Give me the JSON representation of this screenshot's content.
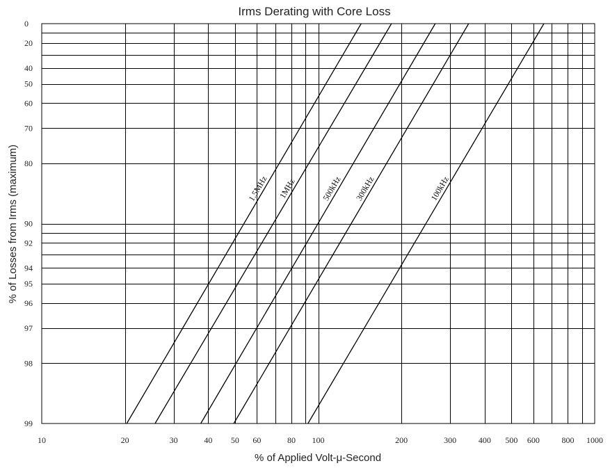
{
  "chart_data": {
    "type": "line",
    "title": "Irms Derating with Core Loss",
    "xlabel": "% of Applied Volt-μ-Second",
    "ylabel": "% of Losses from Irms (maximum)",
    "x_scale": "log",
    "xlim": [
      10,
      1000
    ],
    "x_ticks": [
      10,
      20,
      30,
      40,
      50,
      60,
      80,
      100,
      200,
      300,
      400,
      500,
      600,
      800,
      1000
    ],
    "x_tick_labels": [
      "10",
      "20",
      "30",
      "40",
      "50",
      "60",
      "80",
      "100",
      "200",
      "300",
      "400",
      "500",
      "600",
      "800",
      "1000"
    ],
    "x_minor_grid": [
      70,
      90,
      700,
      900
    ],
    "y_scale": "nonlinear (log of 100 - y)",
    "ylim": [
      0,
      99
    ],
    "y_ticks": [
      0,
      20,
      40,
      50,
      60,
      70,
      80,
      90,
      92,
      94,
      95,
      96,
      97,
      98,
      99
    ],
    "y_tick_labels": [
      "0",
      "20",
      "40",
      "50",
      "60",
      "70",
      "80",
      "90",
      "92",
      "94",
      "95",
      "96",
      "97",
      "98",
      "99"
    ],
    "y_minor_grid": [
      10,
      30,
      91,
      93
    ],
    "grid": true,
    "series": [
      {
        "name": "1.5MHz",
        "points": [
          [
            20.3,
            99
          ],
          [
            143,
            0
          ]
        ]
      },
      {
        "name": "1MHz",
        "points": [
          [
            25.7,
            99
          ],
          [
            184,
            0
          ]
        ]
      },
      {
        "name": "500kHz",
        "points": [
          [
            37.6,
            99
          ],
          [
            265,
            0
          ]
        ]
      },
      {
        "name": "300kHz",
        "points": [
          [
            49.5,
            99
          ],
          [
            350,
            0
          ]
        ]
      },
      {
        "name": "100kHz",
        "points": [
          [
            91.8,
            99
          ],
          [
            655,
            0
          ]
        ]
      }
    ]
  }
}
